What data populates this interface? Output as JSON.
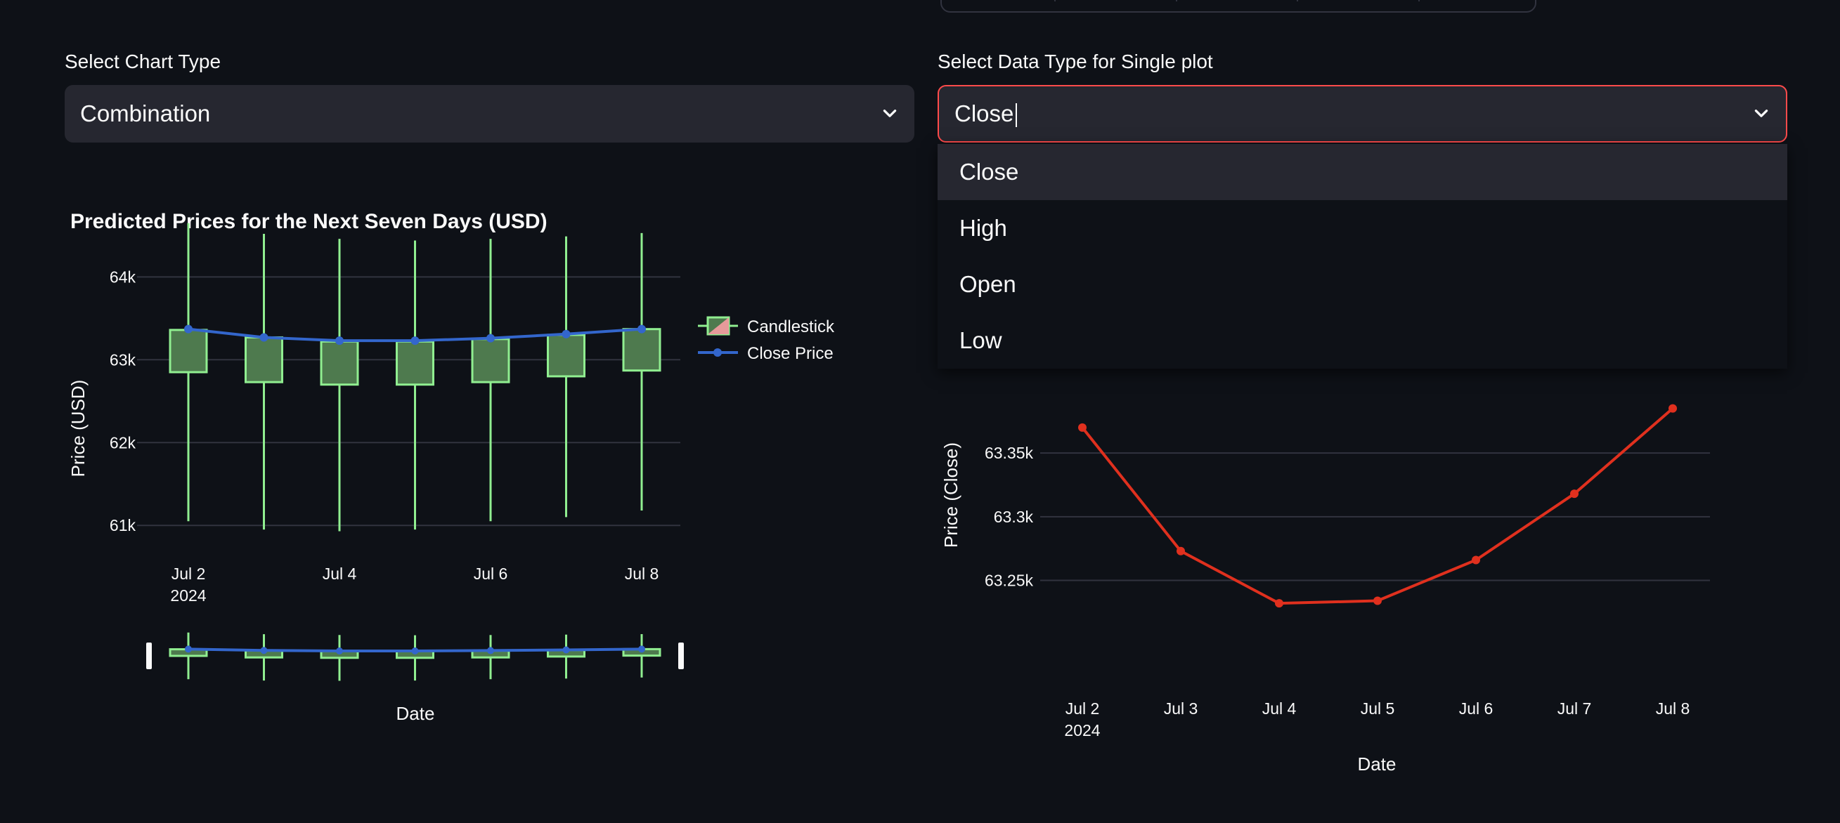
{
  "left_panel": {
    "label": "Select Chart Type",
    "select_value": "Combination"
  },
  "right_panel": {
    "label": "Select Data Type for Single plot",
    "select_value": "Close",
    "options": [
      "Close",
      "High",
      "Open",
      "Low"
    ],
    "highlighted_option": "Close"
  },
  "colors": {
    "background": "#0e1117",
    "select_bg": "#262730",
    "focus_border": "#ff4b4b",
    "increasing": "#90ee90",
    "close_line": "#3366cc",
    "single_line": "#e0301e"
  },
  "chart_data": [
    {
      "type": "candlestick",
      "title": "Predicted Prices for the Next Seven Days (USD)",
      "xlabel": "Date",
      "ylabel": "Price (USD)",
      "x_ticks": [
        "Jul 2",
        "Jul 4",
        "Jul 6",
        "Jul 8"
      ],
      "x_tick_year": "2024",
      "y_ticks": [
        "64k",
        "63k",
        "62k",
        "61k"
      ],
      "ylim": [
        60900,
        64800
      ],
      "grid": true,
      "legend_position": "top-right",
      "range_slider": true,
      "x": [
        "Jul 2",
        "Jul 3",
        "Jul 4",
        "Jul 5",
        "Jul 6",
        "Jul 7",
        "Jul 8"
      ],
      "series": [
        {
          "name": "Candlestick",
          "open": [
            62850,
            62730,
            62700,
            62700,
            62730,
            62800,
            62870
          ],
          "high": [
            64650,
            64520,
            64460,
            64440,
            64460,
            64490,
            64530
          ],
          "low": [
            61050,
            60950,
            60930,
            60950,
            61050,
            61100,
            61180
          ],
          "close": [
            63360,
            63270,
            63220,
            63220,
            63250,
            63300,
            63370
          ]
        },
        {
          "name": "Close Price",
          "values": [
            63370,
            63270,
            63230,
            63230,
            63260,
            63310,
            63370
          ]
        }
      ]
    },
    {
      "type": "line",
      "xlabel": "Date",
      "ylabel": "Price (Close)",
      "x": [
        "Jul 2",
        "Jul 3",
        "Jul 4",
        "Jul 5",
        "Jul 6",
        "Jul 7",
        "Jul 8"
      ],
      "x_tick_year": "2024",
      "y_ticks": [
        "63.35k",
        "63.3k",
        "63.25k"
      ],
      "values": [
        63370,
        63273,
        63232,
        63234,
        63266,
        63318,
        63385
      ],
      "ylim": [
        63215,
        63430
      ],
      "grid": true,
      "series": [
        {
          "values": [
            63370,
            63273,
            63232,
            63234,
            63266,
            63318,
            63385
          ]
        }
      ]
    }
  ]
}
